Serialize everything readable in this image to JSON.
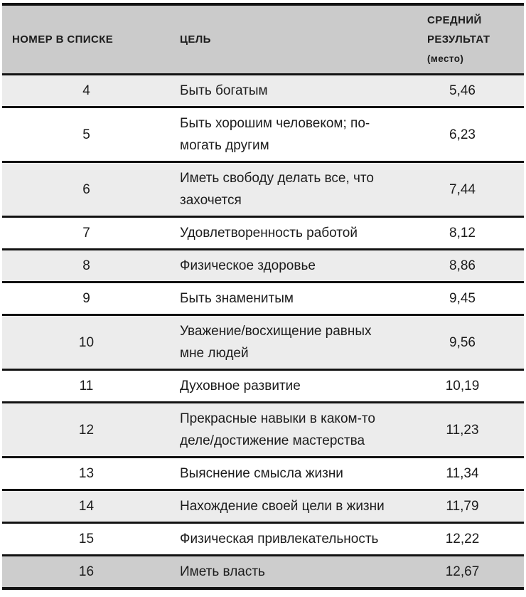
{
  "colors": {
    "header-bg": "#cbcbcb",
    "row-shaded": "#ececec",
    "row-white": "#ffffff",
    "row-last": "#cdcdcd",
    "rule": "#121212",
    "text": "#1c1c1c"
  },
  "table": {
    "headers": {
      "number": "НОМЕР В СПИСКЕ",
      "goal": "ЦЕЛЬ",
      "result_main": "СРЕДНИЙ\nРЕЗУЛЬТАТ",
      "result_sub": "(место)"
    },
    "rows": [
      {
        "num": "4",
        "goal": "Быть богатым",
        "result": "5,46"
      },
      {
        "num": "5",
        "goal": "Быть хорошим человеком; по-\nмогать другим",
        "result": "6,23"
      },
      {
        "num": "6",
        "goal": "Иметь свободу делать все, что\nзахочется",
        "result": "7,44"
      },
      {
        "num": "7",
        "goal": "Удовлетворенность работой",
        "result": "8,12"
      },
      {
        "num": "8",
        "goal": "Физическое здоровье",
        "result": "8,86"
      },
      {
        "num": "9",
        "goal": "Быть знаменитым",
        "result": "9,45"
      },
      {
        "num": "10",
        "goal": "Уважение/восхищение равных\nмне людей",
        "result": "9,56"
      },
      {
        "num": "11",
        "goal": "Духовное развитие",
        "result": "10,19"
      },
      {
        "num": "12",
        "goal": "Прекрасные навыки в каком-то\nделе/достижение мастерства",
        "result": "11,23"
      },
      {
        "num": "13",
        "goal": "Выяснение смысла жизни",
        "result": "11,34"
      },
      {
        "num": "14",
        "goal": "Нахождение своей цели в жизни",
        "result": "11,79"
      },
      {
        "num": "15",
        "goal": "Физическая привлекательность",
        "result": "12,22"
      },
      {
        "num": "16",
        "goal": "Иметь власть",
        "result": "12,67"
      }
    ]
  }
}
